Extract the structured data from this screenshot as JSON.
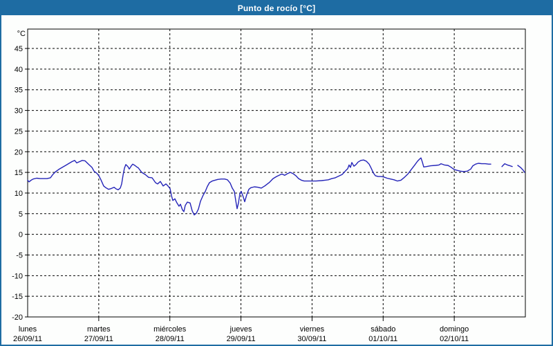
{
  "window": {
    "title": "Punto de rocío [°C]"
  },
  "colors": {
    "titlebar_bg": "#1e6ca3",
    "border": "#1e6ca3",
    "title_text": "#ffffff",
    "plot_bg": "#fdfefd",
    "frame": "#000000",
    "grid": "#000000",
    "axis_text": "#000000",
    "line": "#2323b8"
  },
  "chart_data": {
    "type": "line",
    "title": "Punto de rocío [°C]",
    "ylabel": "°C",
    "y_unit_label": "°C",
    "ylim": [
      -20,
      49.7
    ],
    "y_ticks": [
      45,
      40,
      35,
      30,
      25,
      20,
      15,
      10,
      5,
      0,
      -5,
      -10,
      -15,
      -20
    ],
    "grid": true,
    "x_days": [
      {
        "name": "lunes",
        "date": "26/09/11"
      },
      {
        "name": "martes",
        "date": "27/09/11"
      },
      {
        "name": "miércoles",
        "date": "28/09/11"
      },
      {
        "name": "jueves",
        "date": "29/09/11"
      },
      {
        "name": "viernes",
        "date": "30/09/11"
      },
      {
        "name": "sábado",
        "date": "01/10/11"
      },
      {
        "name": "domingo",
        "date": "02/10/11"
      }
    ],
    "x_axis_days_total": 7,
    "series": [
      {
        "name": "Punto de rocío",
        "color": "#2323b8",
        "segments": [
          [
            [
              0.0,
              13.1
            ],
            [
              0.019,
              12.7
            ],
            [
              0.049,
              13.1
            ],
            [
              0.078,
              13.4
            ],
            [
              0.126,
              13.6
            ],
            [
              0.175,
              13.5
            ],
            [
              0.224,
              13.5
            ],
            [
              0.272,
              13.5
            ],
            [
              0.321,
              13.7
            ],
            [
              0.35,
              14.4
            ],
            [
              0.389,
              15.1
            ],
            [
              0.437,
              15.7
            ],
            [
              0.486,
              16.2
            ],
            [
              0.535,
              16.7
            ],
            [
              0.583,
              17.2
            ],
            [
              0.622,
              17.6
            ],
            [
              0.661,
              17.9
            ],
            [
              0.69,
              17.3
            ],
            [
              0.729,
              17.6
            ],
            [
              0.768,
              17.9
            ],
            [
              0.807,
              17.8
            ],
            [
              0.856,
              17.0
            ],
            [
              0.904,
              16.2
            ],
            [
              0.933,
              15.3
            ],
            [
              0.972,
              14.8
            ],
            [
              1.001,
              14.2
            ],
            [
              1.031,
              13.2
            ],
            [
              1.069,
              11.7
            ],
            [
              1.099,
              11.3
            ],
            [
              1.138,
              10.9
            ],
            [
              1.176,
              11.1
            ],
            [
              1.215,
              11.4
            ],
            [
              1.244,
              11.0
            ],
            [
              1.274,
              10.8
            ],
            [
              1.303,
              11.2
            ],
            [
              1.322,
              12.2
            ],
            [
              1.342,
              14.3
            ],
            [
              1.361,
              16.0
            ],
            [
              1.381,
              16.9
            ],
            [
              1.41,
              16.4
            ],
            [
              1.429,
              15.8
            ],
            [
              1.458,
              16.6
            ],
            [
              1.478,
              17.0
            ],
            [
              1.507,
              16.7
            ],
            [
              1.536,
              16.3
            ],
            [
              1.556,
              16.1
            ],
            [
              1.604,
              15.0
            ],
            [
              1.653,
              14.5
            ],
            [
              1.701,
              13.8
            ],
            [
              1.75,
              13.7
            ],
            [
              1.799,
              12.5
            ],
            [
              1.828,
              12.2
            ],
            [
              1.867,
              12.8
            ],
            [
              1.906,
              11.7
            ],
            [
              1.944,
              12.2
            ],
            [
              1.974,
              11.7
            ],
            [
              2.003,
              11.1
            ],
            [
              2.022,
              9.4
            ],
            [
              2.042,
              8.2
            ],
            [
              2.071,
              8.6
            ],
            [
              2.1,
              7.6
            ],
            [
              2.129,
              6.8
            ],
            [
              2.149,
              7.3
            ],
            [
              2.178,
              5.9
            ],
            [
              2.197,
              5.5
            ],
            [
              2.217,
              7.0
            ],
            [
              2.246,
              7.8
            ],
            [
              2.285,
              7.6
            ],
            [
              2.314,
              5.7
            ],
            [
              2.343,
              4.7
            ],
            [
              2.372,
              5.1
            ],
            [
              2.401,
              6.1
            ],
            [
              2.431,
              8.0
            ],
            [
              2.469,
              9.5
            ],
            [
              2.499,
              10.4
            ],
            [
              2.528,
              11.6
            ],
            [
              2.557,
              12.5
            ],
            [
              2.596,
              12.9
            ],
            [
              2.635,
              13.1
            ],
            [
              2.674,
              13.3
            ],
            [
              2.722,
              13.4
            ],
            [
              2.771,
              13.4
            ],
            [
              2.81,
              13.2
            ],
            [
              2.849,
              12.4
            ],
            [
              2.878,
              11.2
            ],
            [
              2.907,
              10.4
            ],
            [
              2.926,
              8.2
            ],
            [
              2.946,
              6.2
            ],
            [
              2.965,
              7.6
            ],
            [
              2.985,
              9.8
            ],
            [
              3.004,
              10.4
            ],
            [
              3.033,
              9.0
            ],
            [
              3.053,
              7.9
            ],
            [
              3.082,
              9.6
            ],
            [
              3.111,
              10.9
            ],
            [
              3.14,
              11.3
            ],
            [
              3.189,
              11.5
            ],
            [
              3.237,
              11.4
            ],
            [
              3.286,
              11.2
            ],
            [
              3.334,
              11.7
            ],
            [
              3.402,
              12.6
            ],
            [
              3.451,
              13.5
            ],
            [
              3.5,
              14.0
            ],
            [
              3.548,
              14.4
            ],
            [
              3.577,
              14.6
            ],
            [
              3.616,
              14.3
            ],
            [
              3.655,
              14.7
            ],
            [
              3.694,
              15.0
            ],
            [
              3.733,
              14.7
            ],
            [
              3.772,
              14.2
            ],
            [
              3.811,
              13.5
            ],
            [
              3.85,
              13.1
            ],
            [
              3.889,
              12.9
            ],
            [
              3.947,
              12.9
            ],
            [
              3.996,
              12.9
            ],
            [
              4.054,
              12.9
            ],
            [
              4.132,
              13.0
            ],
            [
              4.181,
              13.1
            ],
            [
              4.229,
              13.2
            ],
            [
              4.278,
              13.5
            ],
            [
              4.326,
              13.7
            ],
            [
              4.375,
              14.1
            ],
            [
              4.424,
              14.5
            ],
            [
              4.472,
              15.4
            ],
            [
              4.501,
              15.9
            ],
            [
              4.521,
              16.8
            ],
            [
              4.54,
              16.2
            ],
            [
              4.56,
              17.4
            ],
            [
              4.589,
              16.5
            ],
            [
              4.618,
              16.9
            ],
            [
              4.647,
              17.5
            ],
            [
              4.686,
              17.9
            ],
            [
              4.725,
              18.0
            ],
            [
              4.764,
              17.7
            ],
            [
              4.803,
              17.0
            ],
            [
              4.832,
              16.0
            ],
            [
              4.861,
              14.9
            ],
            [
              4.89,
              14.2
            ],
            [
              4.929,
              14.0
            ],
            [
              4.968,
              14.0
            ],
            [
              5.007,
              13.9
            ],
            [
              5.056,
              13.6
            ],
            [
              5.104,
              13.4
            ],
            [
              5.153,
              13.2
            ],
            [
              5.201,
              12.9
            ],
            [
              5.25,
              13.1
            ],
            [
              5.299,
              13.8
            ],
            [
              5.347,
              14.6
            ],
            [
              5.396,
              15.7
            ],
            [
              5.444,
              16.8
            ],
            [
              5.483,
              17.7
            ],
            [
              5.512,
              18.2
            ],
            [
              5.532,
              18.5
            ],
            [
              5.551,
              17.5
            ],
            [
              5.571,
              16.3
            ],
            [
              5.61,
              16.4
            ],
            [
              5.668,
              16.6
            ],
            [
              5.736,
              16.7
            ],
            [
              5.785,
              16.8
            ],
            [
              5.814,
              17.1
            ],
            [
              5.862,
              16.8
            ],
            [
              5.911,
              16.7
            ],
            [
              5.95,
              16.3
            ],
            [
              5.999,
              15.7
            ],
            [
              6.037,
              15.5
            ],
            [
              6.086,
              15.3
            ],
            [
              6.135,
              15.2
            ],
            [
              6.183,
              15.3
            ],
            [
              6.232,
              15.8
            ],
            [
              6.261,
              16.6
            ],
            [
              6.3,
              17.0
            ],
            [
              6.339,
              17.2
            ],
            [
              6.387,
              17.1
            ],
            [
              6.436,
              17.1
            ],
            [
              6.485,
              17.0
            ],
            [
              6.514,
              17.0
            ]
          ],
          [
            [
              6.67,
              16.4
            ],
            [
              6.709,
              17.1
            ],
            [
              6.748,
              16.8
            ],
            [
              6.786,
              16.6
            ],
            [
              6.816,
              16.4
            ]
          ],
          [
            [
              6.893,
              16.7
            ],
            [
              6.932,
              16.2
            ],
            [
              6.971,
              15.5
            ],
            [
              6.99,
              15.0
            ]
          ]
        ]
      }
    ]
  }
}
